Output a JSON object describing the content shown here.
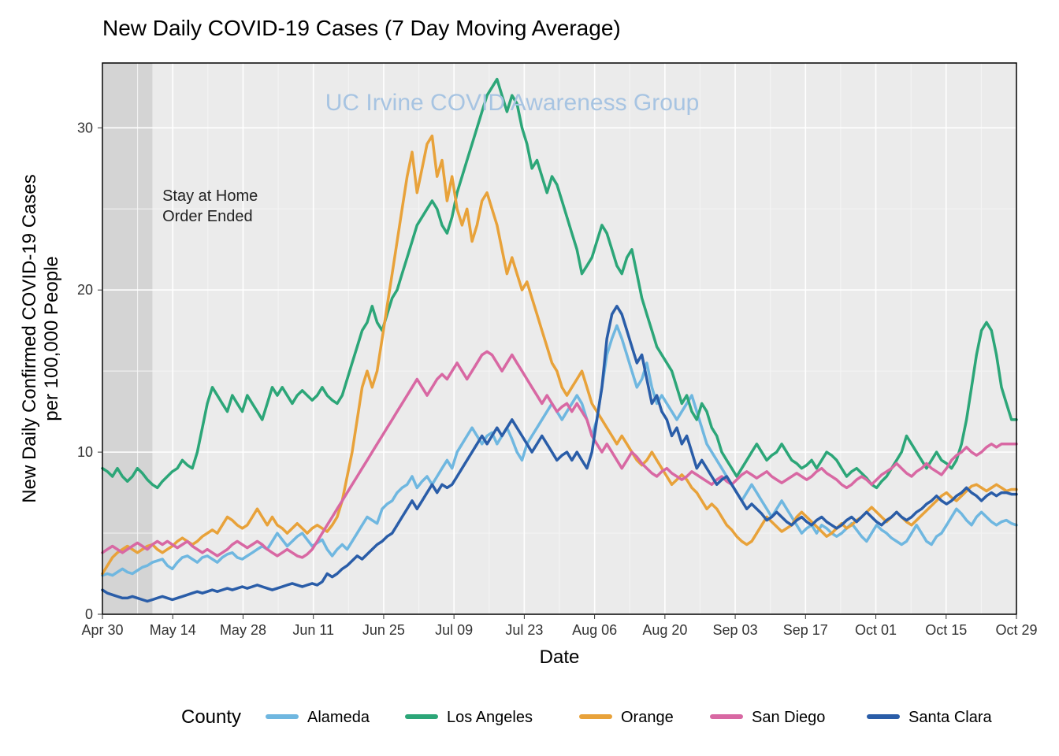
{
  "chart": {
    "type": "line",
    "title": "New Daily COVID-19 Cases (7 Day Moving Average)",
    "title_fontsize": 28,
    "watermark": "UC Irvine COVID Awareness Group",
    "watermark_color": "#a7c4e2",
    "watermark_fontsize": 30,
    "xlabel": "Date",
    "ylabel_line1": "New Daily Confirmed COVID-19 Cases",
    "ylabel_line2": "per 100,000 People",
    "axis_label_fontsize": 24,
    "tick_label_fontsize": 18,
    "background_color": "#ffffff",
    "panel_color": "#ebebeb",
    "grid_major_color": "#ffffff",
    "grid_minor_color": "#f5f5f5",
    "border_color": "#000000",
    "line_width": 3.5,
    "ylim": [
      0,
      34
    ],
    "yticks": [
      0,
      10,
      20,
      30
    ],
    "xticks": [
      "Apr 30",
      "May 14",
      "May 28",
      "Jun 11",
      "Jun 25",
      "Jul 09",
      "Jul 23",
      "Aug 06",
      "Aug 20",
      "Sep 03",
      "Sep 17",
      "Oct 01",
      "Oct 15",
      "Oct 29"
    ],
    "x_count": 184,
    "shaded_region": {
      "start_idx": 0,
      "end_idx": 10,
      "color": "#d4d4d4"
    },
    "annotation": {
      "line1": "Stay at Home",
      "line2": "Order Ended",
      "x_idx": 12,
      "y": 25.5,
      "fontsize": 20
    },
    "legend": {
      "title": "County",
      "title_fontsize": 24,
      "label_fontsize": 20,
      "line_length": 36,
      "line_width": 6
    },
    "series": [
      {
        "name": "Alameda",
        "color": "#6fb7e0",
        "values": [
          2.4,
          2.5,
          2.4,
          2.6,
          2.8,
          2.6,
          2.5,
          2.7,
          2.9,
          3.0,
          3.2,
          3.3,
          3.4,
          3.0,
          2.8,
          3.2,
          3.5,
          3.6,
          3.4,
          3.2,
          3.5,
          3.6,
          3.4,
          3.2,
          3.5,
          3.7,
          3.8,
          3.5,
          3.4,
          3.6,
          3.8,
          4.0,
          4.2,
          4.0,
          4.5,
          5.0,
          4.6,
          4.2,
          4.5,
          4.8,
          5.0,
          4.6,
          4.2,
          4.4,
          4.6,
          4.0,
          3.6,
          4.0,
          4.3,
          4.0,
          4.5,
          5.0,
          5.5,
          6.0,
          5.8,
          5.6,
          6.5,
          6.8,
          7.0,
          7.5,
          7.8,
          8.0,
          8.5,
          7.8,
          8.2,
          8.5,
          8.0,
          8.5,
          9.0,
          9.5,
          9.0,
          10.0,
          10.5,
          11.0,
          11.5,
          11.0,
          10.5,
          11.0,
          11.2,
          10.5,
          11.0,
          11.5,
          10.8,
          10.0,
          9.5,
          10.5,
          11.0,
          11.5,
          12.0,
          12.5,
          13.0,
          12.5,
          12.0,
          12.5,
          13.0,
          13.5,
          13.0,
          12.0,
          11.0,
          12.0,
          14.0,
          16.0,
          17.0,
          17.8,
          17.0,
          16.0,
          15.0,
          14.0,
          14.5,
          15.5,
          14.0,
          13.0,
          13.5,
          13.0,
          12.5,
          12.0,
          12.5,
          13.0,
          13.5,
          12.5,
          11.5,
          10.5,
          10.0,
          9.5,
          9.0,
          8.5,
          8.0,
          7.5,
          7.0,
          7.5,
          8.0,
          7.5,
          7.0,
          6.5,
          6.0,
          6.5,
          7.0,
          6.5,
          6.0,
          5.5,
          5.0,
          5.3,
          5.5,
          5.0,
          5.5,
          5.3,
          5.0,
          4.8,
          5.0,
          5.3,
          5.6,
          5.2,
          4.8,
          4.5,
          5.0,
          5.5,
          5.2,
          5.0,
          4.7,
          4.5,
          4.3,
          4.5,
          5.0,
          5.5,
          5.0,
          4.5,
          4.3,
          4.8,
          5.0,
          5.5,
          6.0,
          6.5,
          6.2,
          5.8,
          5.5,
          6.0,
          6.3,
          6.0,
          5.7,
          5.5,
          5.7,
          5.8,
          5.6,
          5.5
        ]
      },
      {
        "name": "Los Angeles",
        "color": "#2ca678",
        "values": [
          9.0,
          8.8,
          8.5,
          9.0,
          8.5,
          8.2,
          8.5,
          9.0,
          8.7,
          8.3,
          8.0,
          7.8,
          8.2,
          8.5,
          8.8,
          9.0,
          9.5,
          9.2,
          9.0,
          10.0,
          11.5,
          13.0,
          14.0,
          13.5,
          13.0,
          12.5,
          13.5,
          13.0,
          12.5,
          13.5,
          13.0,
          12.5,
          12.0,
          13.0,
          14.0,
          13.5,
          14.0,
          13.5,
          13.0,
          13.5,
          13.8,
          13.5,
          13.2,
          13.5,
          14.0,
          13.5,
          13.2,
          13.0,
          13.5,
          14.5,
          15.5,
          16.5,
          17.5,
          18.0,
          19.0,
          18.0,
          17.5,
          18.5,
          19.5,
          20.0,
          21.0,
          22.0,
          23.0,
          24.0,
          24.5,
          25.0,
          25.5,
          25.0,
          24.0,
          23.5,
          24.5,
          26.0,
          27.0,
          28.0,
          29.0,
          30.0,
          31.0,
          32.0,
          32.5,
          33.0,
          32.0,
          31.0,
          32.0,
          31.5,
          30.0,
          29.0,
          27.5,
          28.0,
          27.0,
          26.0,
          27.0,
          26.5,
          25.5,
          24.5,
          23.5,
          22.5,
          21.0,
          21.5,
          22.0,
          23.0,
          24.0,
          23.5,
          22.5,
          21.5,
          21.0,
          22.0,
          22.5,
          21.0,
          19.5,
          18.5,
          17.5,
          16.5,
          16.0,
          15.5,
          15.0,
          14.0,
          13.0,
          13.5,
          12.5,
          12.0,
          13.0,
          12.5,
          11.5,
          11.0,
          10.0,
          9.5,
          9.0,
          8.5,
          9.0,
          9.5,
          10.0,
          10.5,
          10.0,
          9.5,
          9.8,
          10.0,
          10.5,
          10.0,
          9.5,
          9.3,
          9.0,
          9.2,
          9.5,
          9.0,
          9.5,
          10.0,
          9.8,
          9.5,
          9.0,
          8.5,
          8.8,
          9.0,
          8.7,
          8.4,
          8.0,
          7.8,
          8.2,
          8.5,
          9.0,
          9.5,
          10.0,
          11.0,
          10.5,
          10.0,
          9.5,
          9.0,
          9.5,
          10.0,
          9.5,
          9.3,
          9.0,
          9.5,
          10.5,
          12.0,
          14.0,
          16.0,
          17.5,
          18.0,
          17.5,
          16.0,
          14.0,
          13.0,
          12.0,
          12.0
        ]
      },
      {
        "name": "Orange",
        "color": "#e8a23a",
        "values": [
          2.5,
          3.0,
          3.5,
          3.8,
          4.0,
          4.2,
          4.0,
          3.8,
          4.0,
          4.2,
          4.3,
          4.0,
          3.8,
          4.0,
          4.2,
          4.5,
          4.7,
          4.5,
          4.3,
          4.5,
          4.8,
          5.0,
          5.2,
          5.0,
          5.5,
          6.0,
          5.8,
          5.5,
          5.3,
          5.5,
          6.0,
          6.5,
          6.0,
          5.5,
          6.0,
          5.5,
          5.3,
          5.0,
          5.3,
          5.6,
          5.3,
          5.0,
          5.3,
          5.5,
          5.3,
          5.1,
          5.5,
          6.0,
          7.0,
          8.5,
          10.0,
          12.0,
          14.0,
          15.0,
          14.0,
          15.0,
          17.0,
          19.0,
          21.0,
          23.0,
          25.0,
          27.0,
          28.5,
          26.0,
          27.5,
          29.0,
          29.5,
          27.0,
          28.0,
          25.5,
          27.0,
          25.0,
          24.0,
          25.0,
          23.0,
          24.0,
          25.5,
          26.0,
          25.0,
          24.0,
          22.5,
          21.0,
          22.0,
          21.0,
          20.0,
          20.5,
          19.5,
          18.5,
          17.5,
          16.5,
          15.5,
          15.0,
          14.0,
          13.5,
          14.0,
          14.5,
          15.0,
          14.0,
          13.0,
          12.5,
          12.0,
          11.5,
          11.0,
          10.5,
          11.0,
          10.5,
          10.0,
          9.5,
          9.2,
          9.5,
          10.0,
          9.5,
          9.0,
          8.5,
          8.0,
          8.3,
          8.6,
          8.3,
          7.8,
          7.5,
          7.0,
          6.5,
          6.8,
          6.5,
          6.0,
          5.5,
          5.2,
          4.8,
          4.5,
          4.3,
          4.5,
          5.0,
          5.5,
          6.0,
          5.7,
          5.4,
          5.1,
          5.3,
          5.5,
          6.0,
          6.3,
          6.0,
          5.7,
          5.4,
          5.1,
          4.8,
          5.0,
          5.3,
          5.6,
          5.3,
          5.5,
          5.8,
          6.0,
          6.3,
          6.6,
          6.3,
          6.0,
          5.7,
          6.0,
          6.3,
          6.0,
          5.7,
          5.5,
          5.8,
          6.1,
          6.4,
          6.7,
          7.0,
          7.3,
          7.5,
          7.2,
          7.0,
          7.3,
          7.6,
          7.9,
          8.0,
          7.8,
          7.6,
          7.8,
          8.0,
          7.8,
          7.6,
          7.7,
          7.7
        ]
      },
      {
        "name": "San Diego",
        "color": "#d868a3",
        "values": [
          3.8,
          4.0,
          4.2,
          4.0,
          3.8,
          4.0,
          4.2,
          4.4,
          4.2,
          4.0,
          4.3,
          4.5,
          4.3,
          4.5,
          4.3,
          4.1,
          4.3,
          4.5,
          4.2,
          4.0,
          3.8,
          4.0,
          3.8,
          3.6,
          3.8,
          4.0,
          4.3,
          4.5,
          4.3,
          4.1,
          4.3,
          4.5,
          4.3,
          4.0,
          3.8,
          3.6,
          3.8,
          4.0,
          3.8,
          3.6,
          3.5,
          3.7,
          4.0,
          4.5,
          5.0,
          5.5,
          6.0,
          6.5,
          7.0,
          7.5,
          8.0,
          8.5,
          9.0,
          9.5,
          10.0,
          10.5,
          11.0,
          11.5,
          12.0,
          12.5,
          13.0,
          13.5,
          14.0,
          14.5,
          14.0,
          13.5,
          14.0,
          14.5,
          14.8,
          14.5,
          15.0,
          15.5,
          15.0,
          14.5,
          15.0,
          15.5,
          16.0,
          16.2,
          16.0,
          15.5,
          15.0,
          15.5,
          16.0,
          15.5,
          15.0,
          14.5,
          14.0,
          13.5,
          13.0,
          13.5,
          13.0,
          12.5,
          12.8,
          13.0,
          12.5,
          13.0,
          12.5,
          12.0,
          11.0,
          10.5,
          10.0,
          10.5,
          10.0,
          9.5,
          9.0,
          9.5,
          10.0,
          9.7,
          9.3,
          9.0,
          8.7,
          8.5,
          8.8,
          9.0,
          8.7,
          8.5,
          8.3,
          8.5,
          8.8,
          8.6,
          8.4,
          8.2,
          8.0,
          8.3,
          8.5,
          8.2,
          8.0,
          8.3,
          8.6,
          8.8,
          8.6,
          8.4,
          8.6,
          8.8,
          8.5,
          8.3,
          8.1,
          8.3,
          8.5,
          8.7,
          8.5,
          8.3,
          8.5,
          8.8,
          9.0,
          8.7,
          8.5,
          8.3,
          8.0,
          7.8,
          8.0,
          8.3,
          8.5,
          8.3,
          8.0,
          8.3,
          8.6,
          8.8,
          9.0,
          9.3,
          9.0,
          8.7,
          8.5,
          8.8,
          9.0,
          9.3,
          9.0,
          8.8,
          8.6,
          9.0,
          9.5,
          9.8,
          10.0,
          10.3,
          10.0,
          9.8,
          10.0,
          10.3,
          10.5,
          10.3,
          10.5,
          10.5,
          10.5,
          10.5
        ]
      },
      {
        "name": "Santa Clara",
        "color": "#2a5da8",
        "values": [
          1.5,
          1.3,
          1.2,
          1.1,
          1.0,
          1.0,
          1.1,
          1.0,
          0.9,
          0.8,
          0.9,
          1.0,
          1.1,
          1.0,
          0.9,
          1.0,
          1.1,
          1.2,
          1.3,
          1.4,
          1.3,
          1.4,
          1.5,
          1.4,
          1.5,
          1.6,
          1.5,
          1.6,
          1.7,
          1.6,
          1.7,
          1.8,
          1.7,
          1.6,
          1.5,
          1.6,
          1.7,
          1.8,
          1.9,
          1.8,
          1.7,
          1.8,
          1.9,
          1.8,
          2.0,
          2.5,
          2.3,
          2.5,
          2.8,
          3.0,
          3.3,
          3.6,
          3.4,
          3.7,
          4.0,
          4.3,
          4.5,
          4.8,
          5.0,
          5.5,
          6.0,
          6.5,
          7.0,
          6.5,
          7.0,
          7.5,
          8.0,
          7.5,
          8.0,
          7.8,
          8.0,
          8.5,
          9.0,
          9.5,
          10.0,
          10.5,
          11.0,
          10.5,
          11.0,
          11.5,
          11.0,
          11.5,
          12.0,
          11.5,
          11.0,
          10.5,
          10.0,
          10.5,
          11.0,
          10.5,
          10.0,
          9.5,
          9.8,
          10.0,
          9.5,
          10.0,
          9.5,
          9.0,
          10.0,
          12.0,
          14.0,
          17.0,
          18.5,
          19.0,
          18.5,
          17.5,
          16.5,
          15.5,
          16.0,
          14.5,
          13.0,
          13.5,
          12.5,
          12.0,
          11.0,
          11.5,
          10.5,
          11.0,
          10.0,
          9.0,
          9.5,
          9.0,
          8.5,
          8.0,
          8.3,
          8.5,
          8.0,
          7.5,
          7.0,
          6.5,
          6.8,
          6.5,
          6.2,
          5.8,
          6.0,
          6.3,
          6.0,
          5.7,
          5.5,
          5.8,
          6.0,
          5.7,
          5.5,
          5.8,
          6.0,
          5.7,
          5.5,
          5.3,
          5.5,
          5.8,
          6.0,
          5.7,
          6.0,
          6.3,
          6.0,
          5.7,
          5.5,
          5.8,
          6.0,
          6.3,
          6.0,
          5.8,
          6.0,
          6.3,
          6.5,
          6.8,
          7.0,
          7.3,
          7.0,
          6.8,
          7.0,
          7.3,
          7.5,
          7.8,
          7.5,
          7.3,
          7.0,
          7.3,
          7.5,
          7.3,
          7.5,
          7.5,
          7.4,
          7.4
        ]
      }
    ]
  }
}
